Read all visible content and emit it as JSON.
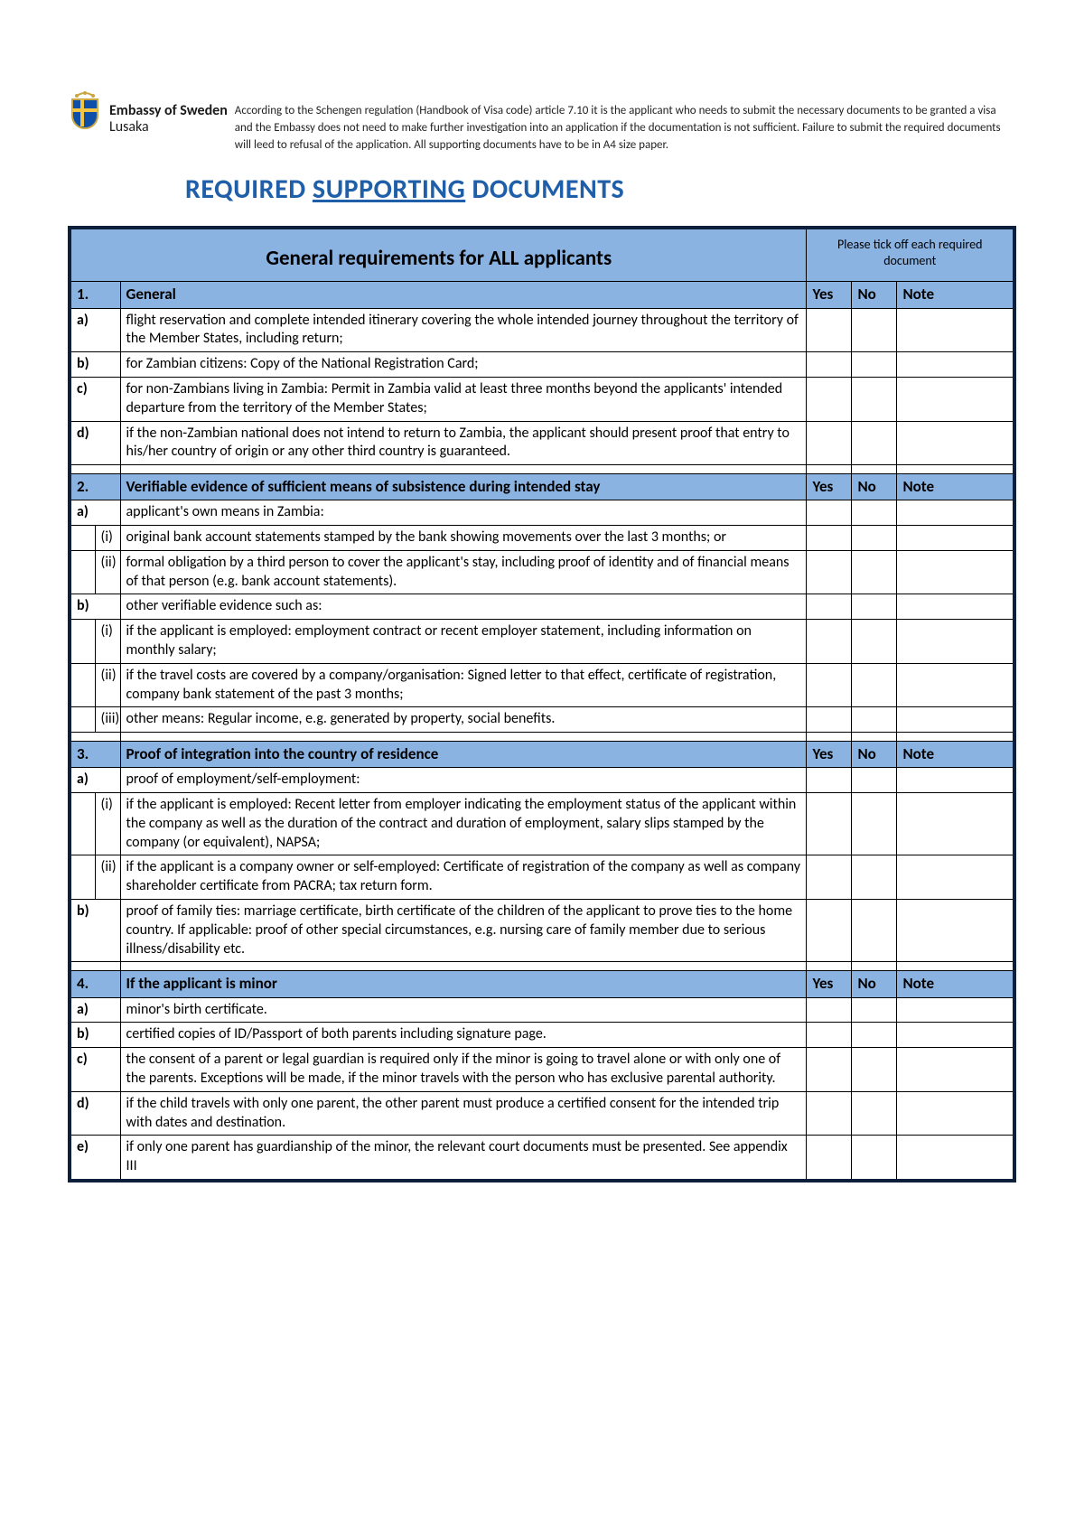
{
  "colors": {
    "border": "#0d1f3a",
    "band": "#8ab3e2",
    "title": "#1f5faa"
  },
  "header": {
    "org_title": "Embassy of Sweden",
    "org_location": "Lusaka",
    "intro": "According to the Schengen regulation (Handbook of Visa code) article 7.10 it is the applicant who needs to submit the necessary documents to be granted a visa and the Embassy does not need to make further investigation into an application if the documentation is not sufficient. Failure to submit the required documents will leed to refusal of the application. All supporting documents have to be in A4 size paper."
  },
  "title": {
    "pre": "REQUIRED ",
    "underlined": "SUPPORTING",
    "post": " DOCUMENTS"
  },
  "table": {
    "band_title": "General requirements for ALL applicants",
    "tick_note": "Please tick off each required document",
    "yes": "Yes",
    "no": "No",
    "note": "Note"
  },
  "sections": [
    {
      "num": "1.",
      "title": "General",
      "rows": [
        {
          "label": "a)",
          "text": "flight reservation and complete intended itinerary covering the whole intended journey throughout the territory of the Member States, including return;"
        },
        {
          "label": "b)",
          "text": "for Zambian citizens: Copy of the National Registration Card;"
        },
        {
          "label": "c)",
          "text": "for non-Zambians living in Zambia: Permit in Zambia valid at least three months beyond the applicants' intended departure from the territory of the Member States;"
        },
        {
          "label": "d)",
          "text": "if the non-Zambian national does not intend to return to Zambia, the applicant should present proof that entry to his/her country of origin or any other third country is guaranteed."
        }
      ]
    },
    {
      "num": "2.",
      "title": "Verifiable evidence of sufficient means of subsistence during intended stay",
      "rows": [
        {
          "label": "a)",
          "text": "applicant's own means in Zambia:"
        },
        {
          "sub": "(i)",
          "text": "original bank account statements stamped by the bank showing movements over the last 3 months; or"
        },
        {
          "sub": "(ii)",
          "text": "formal obligation by a third person to cover the applicant's stay, including proof of identity and of financial means of that person (e.g. bank account statements)."
        },
        {
          "label": "b)",
          "text": "other verifiable evidence such as:"
        },
        {
          "sub": "(i)",
          "text": "if the applicant is employed: employment contract or recent employer statement, including information on monthly salary;"
        },
        {
          "sub": "(ii)",
          "text": "if the travel costs are covered by a company/organisation: Signed letter to that effect, certificate of registration, company bank statement of the past 3 months;"
        },
        {
          "sub": "(iii)",
          "text": "other means: Regular income, e.g. generated by property, social benefits."
        }
      ]
    },
    {
      "num": "3.",
      "title": "Proof of integration into the country of residence",
      "rows": [
        {
          "label": "a)",
          "text": "proof of employment/self-employment:"
        },
        {
          "sub": "(i)",
          "text": "if the applicant is employed: Recent letter from employer indicating the employment status of the applicant within the company as well as the duration of the contract and duration of employment, salary slips stamped by the company (or equivalent), NAPSA;"
        },
        {
          "sub": "(ii)",
          "text": "if the applicant is a company owner or self-employed: Certificate of registration of the company as well as company shareholder certificate from PACRA; tax return form."
        },
        {
          "label": "b)",
          "text": "proof of family ties: marriage certificate, birth certificate of the children of the applicant to prove ties to the home country. If applicable: proof of other special circumstances, e.g. nursing care of family member due to serious illness/disability etc."
        }
      ]
    },
    {
      "num": "4.",
      "title": "If the applicant is minor",
      "rows": [
        {
          "label": "a)",
          "text": "minor's birth certificate."
        },
        {
          "label": "b)",
          "text": "certified copies of ID/Passport of both parents including signature page."
        },
        {
          "label": "c)",
          "text": "the consent of a parent or legal guardian is required only if the minor is going to travel alone or with only one of the parents. Exceptions will be made, if the minor travels with the person who has exclusive parental authority."
        },
        {
          "label": "d)",
          "text": "if the child travels with only one parent, the other parent must produce a certified consent for the intended trip with dates and destination."
        },
        {
          "label": "e)",
          "text": "if only one parent has guardianship of the minor, the relevant court documents must be presented. See appendix III"
        }
      ]
    }
  ]
}
